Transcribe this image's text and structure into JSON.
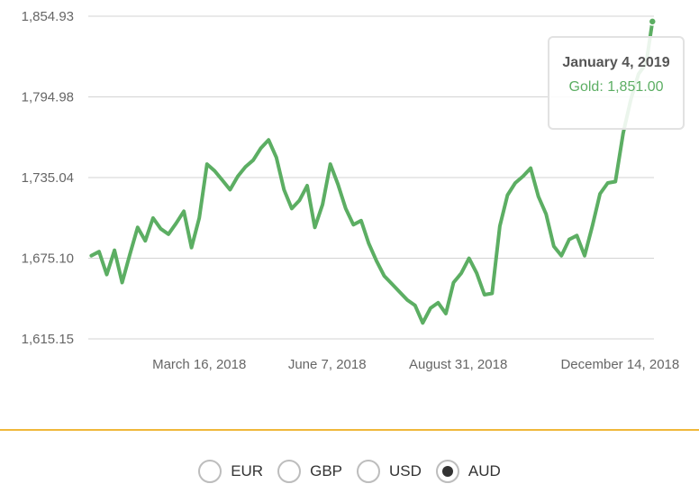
{
  "chart_data": {
    "type": "line",
    "series": [
      {
        "name": "Gold",
        "color": "#5cae63",
        "x": [
          "2018-01-05",
          "2018-01-10",
          "2018-01-15",
          "2018-01-20",
          "2018-01-25",
          "2018-01-30",
          "2018-02-04",
          "2018-02-09",
          "2018-02-14",
          "2018-02-19",
          "2018-02-24",
          "2018-03-01",
          "2018-03-06",
          "2018-03-11",
          "2018-03-16",
          "2018-03-21",
          "2018-03-26",
          "2018-03-31",
          "2018-04-05",
          "2018-04-10",
          "2018-04-15",
          "2018-04-20",
          "2018-04-25",
          "2018-04-30",
          "2018-05-05",
          "2018-05-10",
          "2018-05-15",
          "2018-05-20",
          "2018-05-25",
          "2018-05-30",
          "2018-06-04",
          "2018-06-09",
          "2018-06-14",
          "2018-06-19",
          "2018-06-24",
          "2018-06-29",
          "2018-07-04",
          "2018-07-09",
          "2018-07-14",
          "2018-07-19",
          "2018-07-24",
          "2018-07-29",
          "2018-08-03",
          "2018-08-08",
          "2018-08-13",
          "2018-08-18",
          "2018-08-23",
          "2018-08-28",
          "2018-09-02",
          "2018-09-07",
          "2018-09-12",
          "2018-09-17",
          "2018-09-22",
          "2018-09-27",
          "2018-10-02",
          "2018-10-07",
          "2018-10-12",
          "2018-10-17",
          "2018-10-22",
          "2018-10-27",
          "2018-11-01",
          "2018-11-06",
          "2018-11-11",
          "2018-11-16",
          "2018-11-21",
          "2018-11-26",
          "2018-12-01",
          "2018-12-06",
          "2018-12-11",
          "2018-12-16",
          "2018-12-21",
          "2018-12-26",
          "2018-12-31",
          "2019-01-04"
        ],
        "values": [
          1677,
          1680,
          1663,
          1681,
          1657,
          1678,
          1698,
          1688,
          1705,
          1697,
          1693,
          1701,
          1710,
          1683,
          1705,
          1745,
          1740,
          1733,
          1726,
          1736,
          1743,
          1748,
          1757,
          1763,
          1750,
          1726,
          1712,
          1718,
          1729,
          1698,
          1715,
          1745,
          1730,
          1712,
          1700,
          1703,
          1686,
          1673,
          1662,
          1656,
          1650,
          1644,
          1640,
          1627,
          1638,
          1642,
          1634,
          1657,
          1664,
          1675,
          1664,
          1648,
          1649,
          1699,
          1722,
          1731,
          1736,
          1742,
          1721,
          1708,
          1684,
          1677,
          1689,
          1692,
          1677,
          1699,
          1723,
          1731,
          1732,
          1768,
          1793,
          1812,
          1820,
          1851
        ]
      }
    ],
    "xticks": [
      "March 16, 2018",
      "June 7, 2018",
      "August 31, 2018",
      "December 14, 2018"
    ],
    "yticks": [
      "1,854.93",
      "1,794.98",
      "1,735.04",
      "1,675.10",
      "1,615.15"
    ],
    "ylim": [
      1615.15,
      1854.93
    ],
    "xlim": [
      "2018-01-03",
      "2019-01-05"
    ],
    "grid": true,
    "tooltip": {
      "date": "January 4, 2019",
      "label": "Gold: 1,851.00"
    }
  },
  "currency_options": [
    {
      "label": "EUR",
      "selected": false
    },
    {
      "label": "GBP",
      "selected": false
    },
    {
      "label": "USD",
      "selected": false
    },
    {
      "label": "AUD",
      "selected": true
    }
  ]
}
